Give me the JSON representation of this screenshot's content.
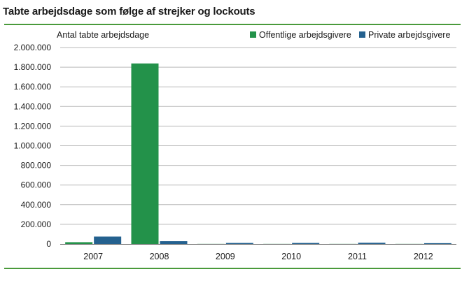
{
  "page": {
    "title": "Tabte arbejdsdage som følge af strejker og lockouts"
  },
  "chart_data": {
    "type": "bar",
    "title": "Tabte arbejdsdage som følge af strejker og lockouts",
    "ylabel": "Antal tabte arbejdsdage",
    "xlabel": "",
    "categories": [
      "2007",
      "2008",
      "2009",
      "2010",
      "2011",
      "2012"
    ],
    "series": [
      {
        "name": "Offentlige arbejdsgivere",
        "color": "#23924a",
        "values": [
          18000,
          1838000,
          1000,
          1000,
          1000,
          1000
        ]
      },
      {
        "name": "Private arbejdsgivere",
        "color": "#24618f",
        "values": [
          75000,
          28000,
          10000,
          10000,
          12000,
          8000
        ]
      }
    ],
    "ylim": [
      0,
      2000000
    ],
    "yticks": [
      0,
      200000,
      400000,
      600000,
      800000,
      1000000,
      1200000,
      1400000,
      1600000,
      1800000,
      2000000
    ],
    "ytick_labels": [
      "0",
      "200.000",
      "400.000",
      "600.000",
      "800.000",
      "1.000.000",
      "1.200.000",
      "1.400.000",
      "1.600.000",
      "1.800.000",
      "2.000.000"
    ],
    "grid": true,
    "legend_position": "top-right"
  }
}
